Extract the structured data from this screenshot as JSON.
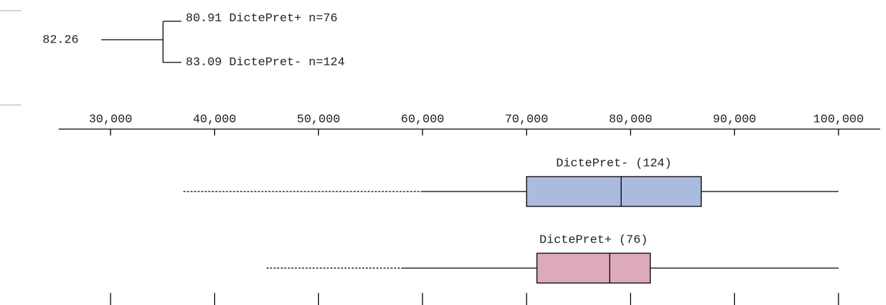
{
  "tree": {
    "root": 82.26,
    "children": [
      {
        "value": 80.91,
        "label": "DictePret+ n=76"
      },
      {
        "value": 83.09,
        "label": "DictePret- n=124"
      }
    ]
  },
  "chart_data": {
    "type": "box",
    "orientation": "horizontal",
    "xlim": [
      25000,
      104000
    ],
    "xticks": [
      {
        "value": 30000,
        "label": "30,000"
      },
      {
        "value": 40000,
        "label": "40,000"
      },
      {
        "value": 50000,
        "label": "50,000"
      },
      {
        "value": 60000,
        "label": "60,000"
      },
      {
        "value": 70000,
        "label": "70,000"
      },
      {
        "value": 80000,
        "label": "80,000"
      },
      {
        "value": 90000,
        "label": "90,000"
      },
      {
        "value": 100000,
        "label": "100,000"
      }
    ],
    "series": [
      {
        "name": "DictePret- (124)",
        "color": "#aabbdd",
        "min": 37000,
        "whisker_low": 60000,
        "q1": 70000,
        "median": 79100,
        "q3": 86800,
        "max": 100000
      },
      {
        "name": "DictePret+ (76)",
        "color": "#ddaabb",
        "min": 45000,
        "whisker_low": 58000,
        "q1": 71000,
        "median": 78000,
        "q3": 81900,
        "max": 100000
      }
    ]
  }
}
